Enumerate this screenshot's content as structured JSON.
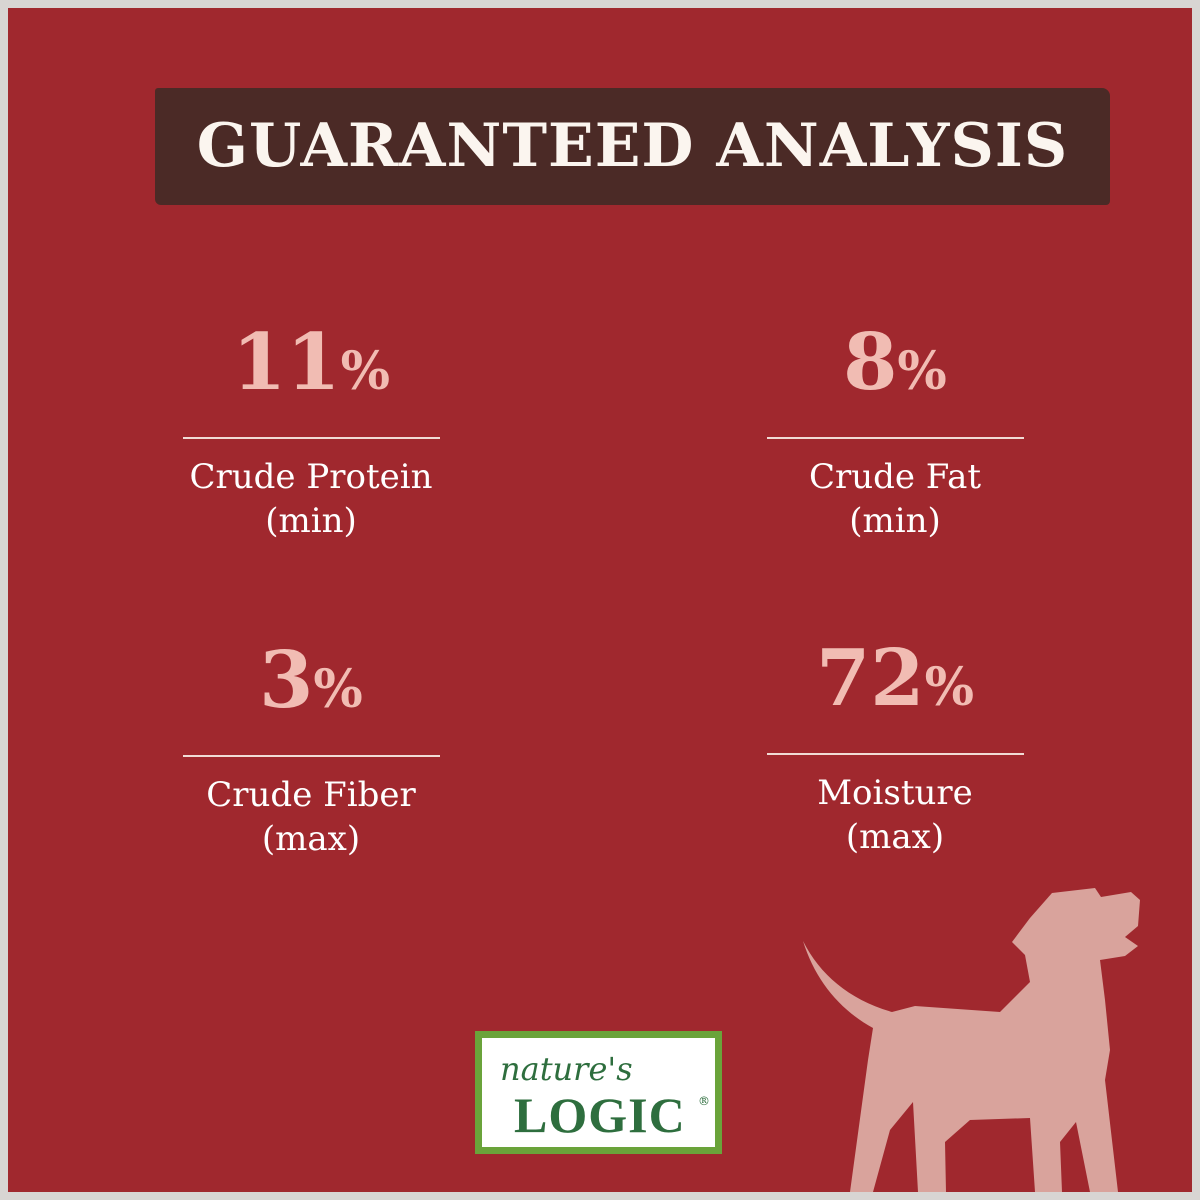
{
  "title": "GUARANTEED ANALYSIS",
  "stats": [
    {
      "value": "11",
      "unit": "%",
      "name": "Crude Protein",
      "qualifier": "(min)"
    },
    {
      "value": "8",
      "unit": "%",
      "name": "Crude Fat",
      "qualifier": "(min)"
    },
    {
      "value": "3",
      "unit": "%",
      "name": "Crude Fiber",
      "qualifier": "(max)"
    },
    {
      "value": "72",
      "unit": "%",
      "name": "Moisture",
      "qualifier": "(max)"
    }
  ],
  "logo": {
    "script": "nature's",
    "main": "LOGIC",
    "reg": "®"
  },
  "colors": {
    "background": "#a0282e",
    "banner": "#4b2a26",
    "number": "#f1bcb3",
    "dog": "#d9a39c",
    "logo_green": "#2e6e3e"
  },
  "icons": {
    "dog": "dog-silhouette-icon"
  }
}
